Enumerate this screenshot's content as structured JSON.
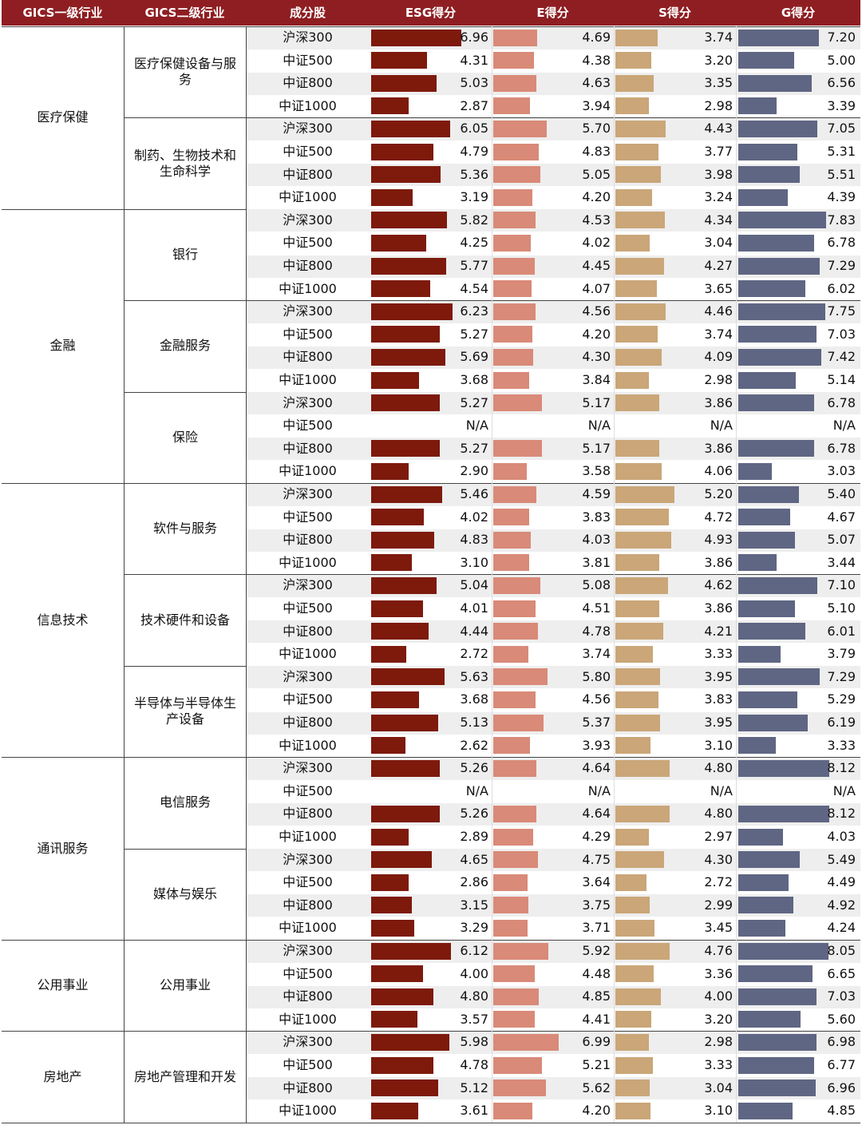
{
  "headers": [
    "GICS一级行业",
    "GICS二级行业",
    "成分股",
    "ESG得分",
    "E得分",
    "S得分",
    "G得分"
  ],
  "colors": {
    "header_bg": "#8e1e22",
    "esg": "#7d1a0c",
    "e": "#d98a78",
    "s": "#caa678",
    "g": "#5f6683",
    "stripe": "#eeeeee"
  },
  "na_label": "N/A",
  "chart_data": {
    "type": "table",
    "columns": [
      "ESG得分",
      "E得分",
      "S得分",
      "G得分"
    ],
    "groups": [
      {
        "name": "医疗保健",
        "subgroups": [
          {
            "name": "医疗保健设备与服务",
            "rows": [
              {
                "index": "沪深300",
                "values": [
                  "6.96",
                  "4.69",
                  "3.74",
                  "7.20"
                ]
              },
              {
                "index": "中证500",
                "values": [
                  "4.31",
                  "4.38",
                  "3.20",
                  "5.00"
                ]
              },
              {
                "index": "中证800",
                "values": [
                  "5.03",
                  "4.63",
                  "3.35",
                  "6.56"
                ]
              },
              {
                "index": "中证1000",
                "values": [
                  "2.87",
                  "3.94",
                  "2.98",
                  "3.39"
                ]
              }
            ]
          },
          {
            "name": "制药、生物技术和生命科学",
            "rows": [
              {
                "index": "沪深300",
                "values": [
                  "6.05",
                  "5.70",
                  "4.43",
                  "7.05"
                ]
              },
              {
                "index": "中证500",
                "values": [
                  "4.79",
                  "4.83",
                  "3.77",
                  "5.31"
                ]
              },
              {
                "index": "中证800",
                "values": [
                  "5.36",
                  "5.05",
                  "3.98",
                  "5.51"
                ]
              },
              {
                "index": "中证1000",
                "values": [
                  "3.19",
                  "4.20",
                  "3.24",
                  "4.39"
                ]
              }
            ]
          }
        ]
      },
      {
        "name": "金融",
        "subgroups": [
          {
            "name": "银行",
            "rows": [
              {
                "index": "沪深300",
                "values": [
                  "5.82",
                  "4.53",
                  "4.34",
                  "7.83"
                ]
              },
              {
                "index": "中证500",
                "values": [
                  "4.25",
                  "4.02",
                  "3.04",
                  "6.78"
                ]
              },
              {
                "index": "中证800",
                "values": [
                  "5.77",
                  "4.45",
                  "4.27",
                  "7.29"
                ]
              },
              {
                "index": "中证1000",
                "values": [
                  "4.54",
                  "4.07",
                  "3.65",
                  "6.02"
                ]
              }
            ]
          },
          {
            "name": "金融服务",
            "rows": [
              {
                "index": "沪深300",
                "values": [
                  "6.23",
                  "4.56",
                  "4.46",
                  "7.75"
                ]
              },
              {
                "index": "中证500",
                "values": [
                  "5.27",
                  "4.20",
                  "3.74",
                  "7.03"
                ]
              },
              {
                "index": "中证800",
                "values": [
                  "5.69",
                  "4.30",
                  "4.09",
                  "7.42"
                ]
              },
              {
                "index": "中证1000",
                "values": [
                  "3.68",
                  "3.84",
                  "2.98",
                  "5.14"
                ]
              }
            ]
          },
          {
            "name": "保险",
            "rows": [
              {
                "index": "沪深300",
                "values": [
                  "5.27",
                  "5.17",
                  "3.86",
                  "6.78"
                ]
              },
              {
                "index": "中证500",
                "values": [
                  "N/A",
                  "N/A",
                  "N/A",
                  "N/A"
                ]
              },
              {
                "index": "中证800",
                "values": [
                  "5.27",
                  "5.17",
                  "3.86",
                  "6.78"
                ]
              },
              {
                "index": "中证1000",
                "values": [
                  "2.90",
                  "3.58",
                  "4.06",
                  "3.03"
                ]
              }
            ]
          }
        ]
      },
      {
        "name": "信息技术",
        "subgroups": [
          {
            "name": "软件与服务",
            "rows": [
              {
                "index": "沪深300",
                "values": [
                  "5.46",
                  "4.59",
                  "5.20",
                  "5.40"
                ]
              },
              {
                "index": "中证500",
                "values": [
                  "4.02",
                  "3.83",
                  "4.72",
                  "4.67"
                ]
              },
              {
                "index": "中证800",
                "values": [
                  "4.83",
                  "4.03",
                  "4.93",
                  "5.07"
                ]
              },
              {
                "index": "中证1000",
                "values": [
                  "3.10",
                  "3.81",
                  "3.86",
                  "3.44"
                ]
              }
            ]
          },
          {
            "name": "技术硬件和设备",
            "rows": [
              {
                "index": "沪深300",
                "values": [
                  "5.04",
                  "5.08",
                  "4.62",
                  "7.10"
                ]
              },
              {
                "index": "中证500",
                "values": [
                  "4.01",
                  "4.51",
                  "3.86",
                  "5.10"
                ]
              },
              {
                "index": "中证800",
                "values": [
                  "4.44",
                  "4.78",
                  "4.21",
                  "6.01"
                ]
              },
              {
                "index": "中证1000",
                "values": [
                  "2.72",
                  "3.74",
                  "3.33",
                  "3.79"
                ]
              }
            ]
          },
          {
            "name": "半导体与半导体生产设备",
            "rows": [
              {
                "index": "沪深300",
                "values": [
                  "5.63",
                  "5.80",
                  "3.95",
                  "7.29"
                ]
              },
              {
                "index": "中证500",
                "values": [
                  "3.68",
                  "4.56",
                  "3.83",
                  "5.29"
                ]
              },
              {
                "index": "中证800",
                "values": [
                  "5.13",
                  "5.37",
                  "3.95",
                  "6.19"
                ]
              },
              {
                "index": "中证1000",
                "values": [
                  "2.62",
                  "3.93",
                  "3.10",
                  "3.33"
                ]
              }
            ]
          }
        ]
      },
      {
        "name": "通讯服务",
        "subgroups": [
          {
            "name": "电信服务",
            "rows": [
              {
                "index": "沪深300",
                "values": [
                  "5.26",
                  "4.64",
                  "4.80",
                  "8.12"
                ]
              },
              {
                "index": "中证500",
                "values": [
                  "N/A",
                  "N/A",
                  "N/A",
                  "N/A"
                ]
              },
              {
                "index": "中证800",
                "values": [
                  "5.26",
                  "4.64",
                  "4.80",
                  "8.12"
                ]
              },
              {
                "index": "中证1000",
                "values": [
                  "2.89",
                  "4.29",
                  "2.97",
                  "4.03"
                ]
              }
            ]
          },
          {
            "name": "媒体与娱乐",
            "rows": [
              {
                "index": "沪深300",
                "values": [
                  "4.65",
                  "4.75",
                  "4.30",
                  "5.49"
                ]
              },
              {
                "index": "中证500",
                "values": [
                  "2.86",
                  "3.64",
                  "2.72",
                  "4.49"
                ]
              },
              {
                "index": "中证800",
                "values": [
                  "3.15",
                  "3.75",
                  "2.99",
                  "4.92"
                ]
              },
              {
                "index": "中证1000",
                "values": [
                  "3.29",
                  "3.71",
                  "3.45",
                  "4.24"
                ]
              }
            ]
          }
        ]
      },
      {
        "name": "公用事业",
        "subgroups": [
          {
            "name": "公用事业",
            "rows": [
              {
                "index": "沪深300",
                "values": [
                  "6.12",
                  "5.92",
                  "4.76",
                  "8.05"
                ]
              },
              {
                "index": "中证500",
                "values": [
                  "4.00",
                  "4.48",
                  "3.36",
                  "6.65"
                ]
              },
              {
                "index": "中证800",
                "values": [
                  "4.80",
                  "4.85",
                  "4.00",
                  "7.03"
                ]
              },
              {
                "index": "中证1000",
                "values": [
                  "3.57",
                  "4.41",
                  "3.20",
                  "5.60"
                ]
              }
            ]
          }
        ]
      },
      {
        "name": "房地产",
        "subgroups": [
          {
            "name": "房地产管理和开发",
            "rows": [
              {
                "index": "沪深300",
                "values": [
                  "5.98",
                  "6.99",
                  "2.98",
                  "6.98"
                ]
              },
              {
                "index": "中证500",
                "values": [
                  "4.78",
                  "5.21",
                  "3.33",
                  "6.77"
                ]
              },
              {
                "index": "中证800",
                "values": [
                  "5.12",
                  "5.62",
                  "3.04",
                  "6.96"
                ]
              },
              {
                "index": "中证1000",
                "values": [
                  "3.61",
                  "4.20",
                  "3.10",
                  "4.85"
                ]
              }
            ]
          }
        ]
      }
    ]
  }
}
